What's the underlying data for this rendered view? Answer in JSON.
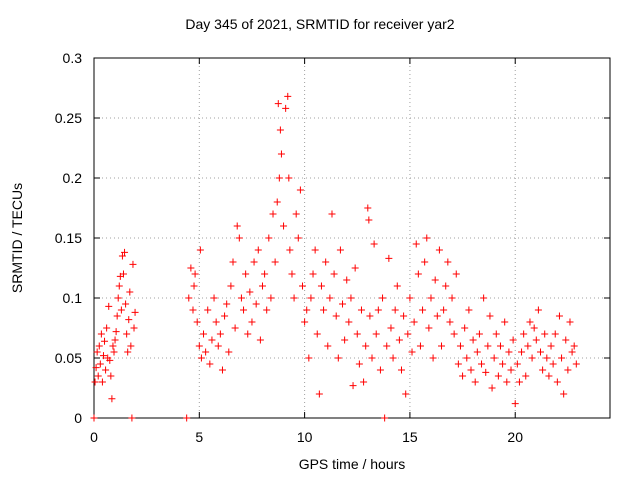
{
  "chart_data": {
    "type": "scatter",
    "title": "Day 345 of 2021, SRMTID for receiver yar2",
    "xlabel": "GPS time / hours",
    "ylabel": "SRMTID / TECUs",
    "xlim": [
      0,
      24.5
    ],
    "ylim": [
      0,
      0.3
    ],
    "xticks": [
      0,
      5,
      10,
      15,
      20
    ],
    "xtick_labels": [
      "0",
      "5",
      "10",
      "15",
      "20"
    ],
    "yticks": [
      0,
      0.05,
      0.1,
      0.15,
      0.2,
      0.25,
      0.3
    ],
    "ytick_labels": [
      "0",
      "0.05",
      "0.1",
      "0.15",
      "0.2",
      "0.25",
      "0.3"
    ],
    "grid": true,
    "marker": "+",
    "marker_color": "#ff0000",
    "series": [
      {
        "name": "SRMTID",
        "points": [
          [
            0.0,
            0.0
          ],
          [
            0.05,
            0.03
          ],
          [
            0.1,
            0.042
          ],
          [
            0.15,
            0.055
          ],
          [
            0.2,
            0.035
          ],
          [
            0.25,
            0.06
          ],
          [
            0.3,
            0.045
          ],
          [
            0.35,
            0.07
          ],
          [
            0.4,
            0.03
          ],
          [
            0.45,
            0.052
          ],
          [
            0.5,
            0.064
          ],
          [
            0.55,
            0.04
          ],
          [
            0.6,
            0.075
          ],
          [
            0.65,
            0.05
          ],
          [
            0.7,
            0.093
          ],
          [
            0.75,
            0.048
          ],
          [
            0.8,
            0.035
          ],
          [
            0.85,
            0.016
          ],
          [
            0.9,
            0.06
          ],
          [
            0.95,
            0.055
          ],
          [
            1.0,
            0.065
          ],
          [
            1.05,
            0.072
          ],
          [
            1.1,
            0.085
          ],
          [
            1.15,
            0.1
          ],
          [
            1.2,
            0.11
          ],
          [
            1.25,
            0.118
          ],
          [
            1.3,
            0.09
          ],
          [
            1.35,
            0.135
          ],
          [
            1.4,
            0.12
          ],
          [
            1.45,
            0.138
          ],
          [
            1.5,
            0.095
          ],
          [
            1.55,
            0.07
          ],
          [
            1.6,
            0.055
          ],
          [
            1.65,
            0.082
          ],
          [
            1.7,
            0.105
          ],
          [
            1.75,
            0.06
          ],
          [
            1.8,
            0.0
          ],
          [
            1.85,
            0.128
          ],
          [
            1.9,
            0.075
          ],
          [
            1.95,
            0.088
          ],
          [
            4.4,
            0.0
          ],
          [
            4.5,
            0.1
          ],
          [
            4.6,
            0.125
          ],
          [
            4.7,
            0.09
          ],
          [
            4.75,
            0.11
          ],
          [
            4.8,
            0.12
          ],
          [
            4.9,
            0.08
          ],
          [
            5.0,
            0.06
          ],
          [
            5.05,
            0.14
          ],
          [
            5.1,
            0.05
          ],
          [
            5.2,
            0.07
          ],
          [
            5.3,
            0.055
          ],
          [
            5.4,
            0.09
          ],
          [
            5.5,
            0.045
          ],
          [
            5.6,
            0.065
          ],
          [
            5.7,
            0.1
          ],
          [
            5.8,
            0.08
          ],
          [
            5.9,
            0.06
          ],
          [
            6.0,
            0.07
          ],
          [
            6.1,
            0.04
          ],
          [
            6.2,
            0.085
          ],
          [
            6.3,
            0.095
          ],
          [
            6.4,
            0.055
          ],
          [
            6.5,
            0.11
          ],
          [
            6.6,
            0.13
          ],
          [
            6.7,
            0.075
          ],
          [
            6.8,
            0.16
          ],
          [
            6.9,
            0.15
          ],
          [
            7.0,
            0.1
          ],
          [
            7.1,
            0.09
          ],
          [
            7.2,
            0.12
          ],
          [
            7.3,
            0.07
          ],
          [
            7.4,
            0.105
          ],
          [
            7.5,
            0.08
          ],
          [
            7.6,
            0.13
          ],
          [
            7.7,
            0.095
          ],
          [
            7.8,
            0.14
          ],
          [
            7.9,
            0.065
          ],
          [
            8.0,
            0.11
          ],
          [
            8.1,
            0.12
          ],
          [
            8.2,
            0.09
          ],
          [
            8.3,
            0.15
          ],
          [
            8.4,
            0.1
          ],
          [
            8.5,
            0.17
          ],
          [
            8.6,
            0.13
          ],
          [
            8.7,
            0.18
          ],
          [
            8.75,
            0.262
          ],
          [
            8.8,
            0.2
          ],
          [
            8.85,
            0.24
          ],
          [
            8.9,
            0.22
          ],
          [
            9.0,
            0.16
          ],
          [
            9.1,
            0.258
          ],
          [
            9.2,
            0.268
          ],
          [
            9.25,
            0.2
          ],
          [
            9.3,
            0.14
          ],
          [
            9.4,
            0.12
          ],
          [
            9.5,
            0.1
          ],
          [
            9.6,
            0.17
          ],
          [
            9.7,
            0.15
          ],
          [
            9.8,
            0.19
          ],
          [
            9.9,
            0.11
          ],
          [
            10.0,
            0.08
          ],
          [
            10.1,
            0.09
          ],
          [
            10.2,
            0.05
          ],
          [
            10.3,
            0.1
          ],
          [
            10.4,
            0.12
          ],
          [
            10.5,
            0.14
          ],
          [
            10.6,
            0.07
          ],
          [
            10.7,
            0.02
          ],
          [
            10.8,
            0.11
          ],
          [
            10.9,
            0.09
          ],
          [
            11.0,
            0.13
          ],
          [
            11.1,
            0.06
          ],
          [
            11.2,
            0.1
          ],
          [
            11.3,
            0.17
          ],
          [
            11.4,
            0.12
          ],
          [
            11.5,
            0.085
          ],
          [
            11.6,
            0.05
          ],
          [
            11.7,
            0.14
          ],
          [
            11.8,
            0.095
          ],
          [
            11.9,
            0.065
          ],
          [
            12.0,
            0.115
          ],
          [
            12.1,
            0.08
          ],
          [
            12.2,
            0.1
          ],
          [
            12.3,
            0.027
          ],
          [
            12.4,
            0.125
          ],
          [
            12.5,
            0.07
          ],
          [
            12.6,
            0.045
          ],
          [
            12.7,
            0.09
          ],
          [
            12.8,
            0.03
          ],
          [
            12.9,
            0.06
          ],
          [
            13.0,
            0.175
          ],
          [
            13.05,
            0.165
          ],
          [
            13.1,
            0.085
          ],
          [
            13.2,
            0.05
          ],
          [
            13.3,
            0.145
          ],
          [
            13.4,
            0.07
          ],
          [
            13.5,
            0.09
          ],
          [
            13.6,
            0.04
          ],
          [
            13.7,
            0.1
          ],
          [
            13.8,
            0.0
          ],
          [
            13.9,
            0.06
          ],
          [
            14.0,
            0.133
          ],
          [
            14.1,
            0.075
          ],
          [
            14.2,
            0.05
          ],
          [
            14.3,
            0.09
          ],
          [
            14.4,
            0.11
          ],
          [
            14.5,
            0.065
          ],
          [
            14.6,
            0.04
          ],
          [
            14.7,
            0.085
          ],
          [
            14.8,
            0.02
          ],
          [
            14.9,
            0.07
          ],
          [
            15.0,
            0.1
          ],
          [
            15.1,
            0.055
          ],
          [
            15.2,
            0.08
          ],
          [
            15.3,
            0.145
          ],
          [
            15.4,
            0.12
          ],
          [
            15.5,
            0.06
          ],
          [
            15.6,
            0.09
          ],
          [
            15.7,
            0.13
          ],
          [
            15.8,
            0.15
          ],
          [
            15.9,
            0.075
          ],
          [
            16.0,
            0.1
          ],
          [
            16.1,
            0.05
          ],
          [
            16.2,
            0.115
          ],
          [
            16.3,
            0.085
          ],
          [
            16.4,
            0.14
          ],
          [
            16.5,
            0.06
          ],
          [
            16.6,
            0.09
          ],
          [
            16.7,
            0.11
          ],
          [
            16.8,
            0.13
          ],
          [
            16.9,
            0.08
          ],
          [
            17.0,
            0.1
          ],
          [
            17.1,
            0.07
          ],
          [
            17.2,
            0.12
          ],
          [
            17.3,
            0.045
          ],
          [
            17.4,
            0.06
          ],
          [
            17.5,
            0.035
          ],
          [
            17.6,
            0.075
          ],
          [
            17.7,
            0.05
          ],
          [
            17.8,
            0.09
          ],
          [
            17.9,
            0.04
          ],
          [
            18.0,
            0.065
          ],
          [
            18.1,
            0.03
          ],
          [
            18.2,
            0.055
          ],
          [
            18.3,
            0.07
          ],
          [
            18.4,
            0.045
          ],
          [
            18.5,
            0.1
          ],
          [
            18.6,
            0.038
          ],
          [
            18.7,
            0.06
          ],
          [
            18.8,
            0.085
          ],
          [
            18.9,
            0.025
          ],
          [
            19.0,
            0.05
          ],
          [
            19.1,
            0.07
          ],
          [
            19.2,
            0.035
          ],
          [
            19.3,
            0.06
          ],
          [
            19.4,
            0.045
          ],
          [
            19.5,
            0.08
          ],
          [
            19.6,
            0.03
          ],
          [
            19.7,
            0.055
          ],
          [
            19.8,
            0.04
          ],
          [
            19.9,
            0.065
          ],
          [
            20.0,
            0.012
          ],
          [
            20.1,
            0.045
          ],
          [
            20.2,
            0.03
          ],
          [
            20.3,
            0.055
          ],
          [
            20.4,
            0.07
          ],
          [
            20.5,
            0.035
          ],
          [
            20.6,
            0.06
          ],
          [
            20.7,
            0.08
          ],
          [
            20.8,
            0.05
          ],
          [
            20.9,
            0.075
          ],
          [
            21.0,
            0.065
          ],
          [
            21.1,
            0.09
          ],
          [
            21.2,
            0.055
          ],
          [
            21.3,
            0.04
          ],
          [
            21.4,
            0.07
          ],
          [
            21.5,
            0.05
          ],
          [
            21.6,
            0.035
          ],
          [
            21.7,
            0.06
          ],
          [
            21.8,
            0.045
          ],
          [
            21.9,
            0.07
          ],
          [
            22.0,
            0.03
          ],
          [
            22.1,
            0.085
          ],
          [
            22.2,
            0.05
          ],
          [
            22.3,
            0.02
          ],
          [
            22.4,
            0.065
          ],
          [
            22.5,
            0.04
          ],
          [
            22.6,
            0.08
          ],
          [
            22.7,
            0.055
          ],
          [
            22.8,
            0.06
          ],
          [
            22.9,
            0.045
          ]
        ]
      }
    ]
  }
}
